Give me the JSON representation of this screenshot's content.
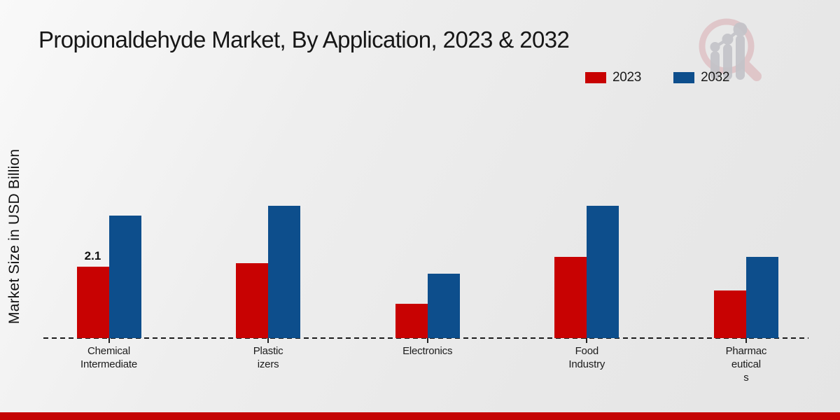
{
  "chart_data": {
    "type": "bar",
    "title": "Propionaldehyde Market, By Application, 2023 & 2032",
    "ylabel": "Market Size in USD Billion",
    "xlabel": "",
    "categories": [
      "Chemical Intermediate",
      "Plasticizers",
      "Electronics",
      "Food Industry",
      "Pharmaceuticals"
    ],
    "category_label_lines": [
      [
        "Chemical",
        "Intermediate"
      ],
      [
        "Plastic",
        "izers"
      ],
      [
        "Electronics"
      ],
      [
        "Food",
        "Industry"
      ],
      [
        "Pharmac",
        "eutical",
        "s"
      ]
    ],
    "series": [
      {
        "name": "2023",
        "color": "#c80202",
        "values": [
          2.1,
          2.2,
          1.0,
          2.4,
          1.4
        ]
      },
      {
        "name": "2032",
        "color": "#0d4e8c",
        "values": [
          3.6,
          3.9,
          1.9,
          3.9,
          2.4
        ]
      }
    ],
    "annotations": [
      {
        "series": "2023",
        "category_index": 0,
        "text": "2.1"
      }
    ],
    "ylim": [
      0,
      4.2
    ],
    "grid": false,
    "legend_position": "top-right",
    "baseline_style": "dashed"
  },
  "branding": {
    "watermark_icon": "magnifier-bar-chart-logo",
    "watermark_ring_color": "#d9abb0",
    "watermark_bars_color": "#c3c3c8",
    "footer_bar_color": "#c40404"
  }
}
